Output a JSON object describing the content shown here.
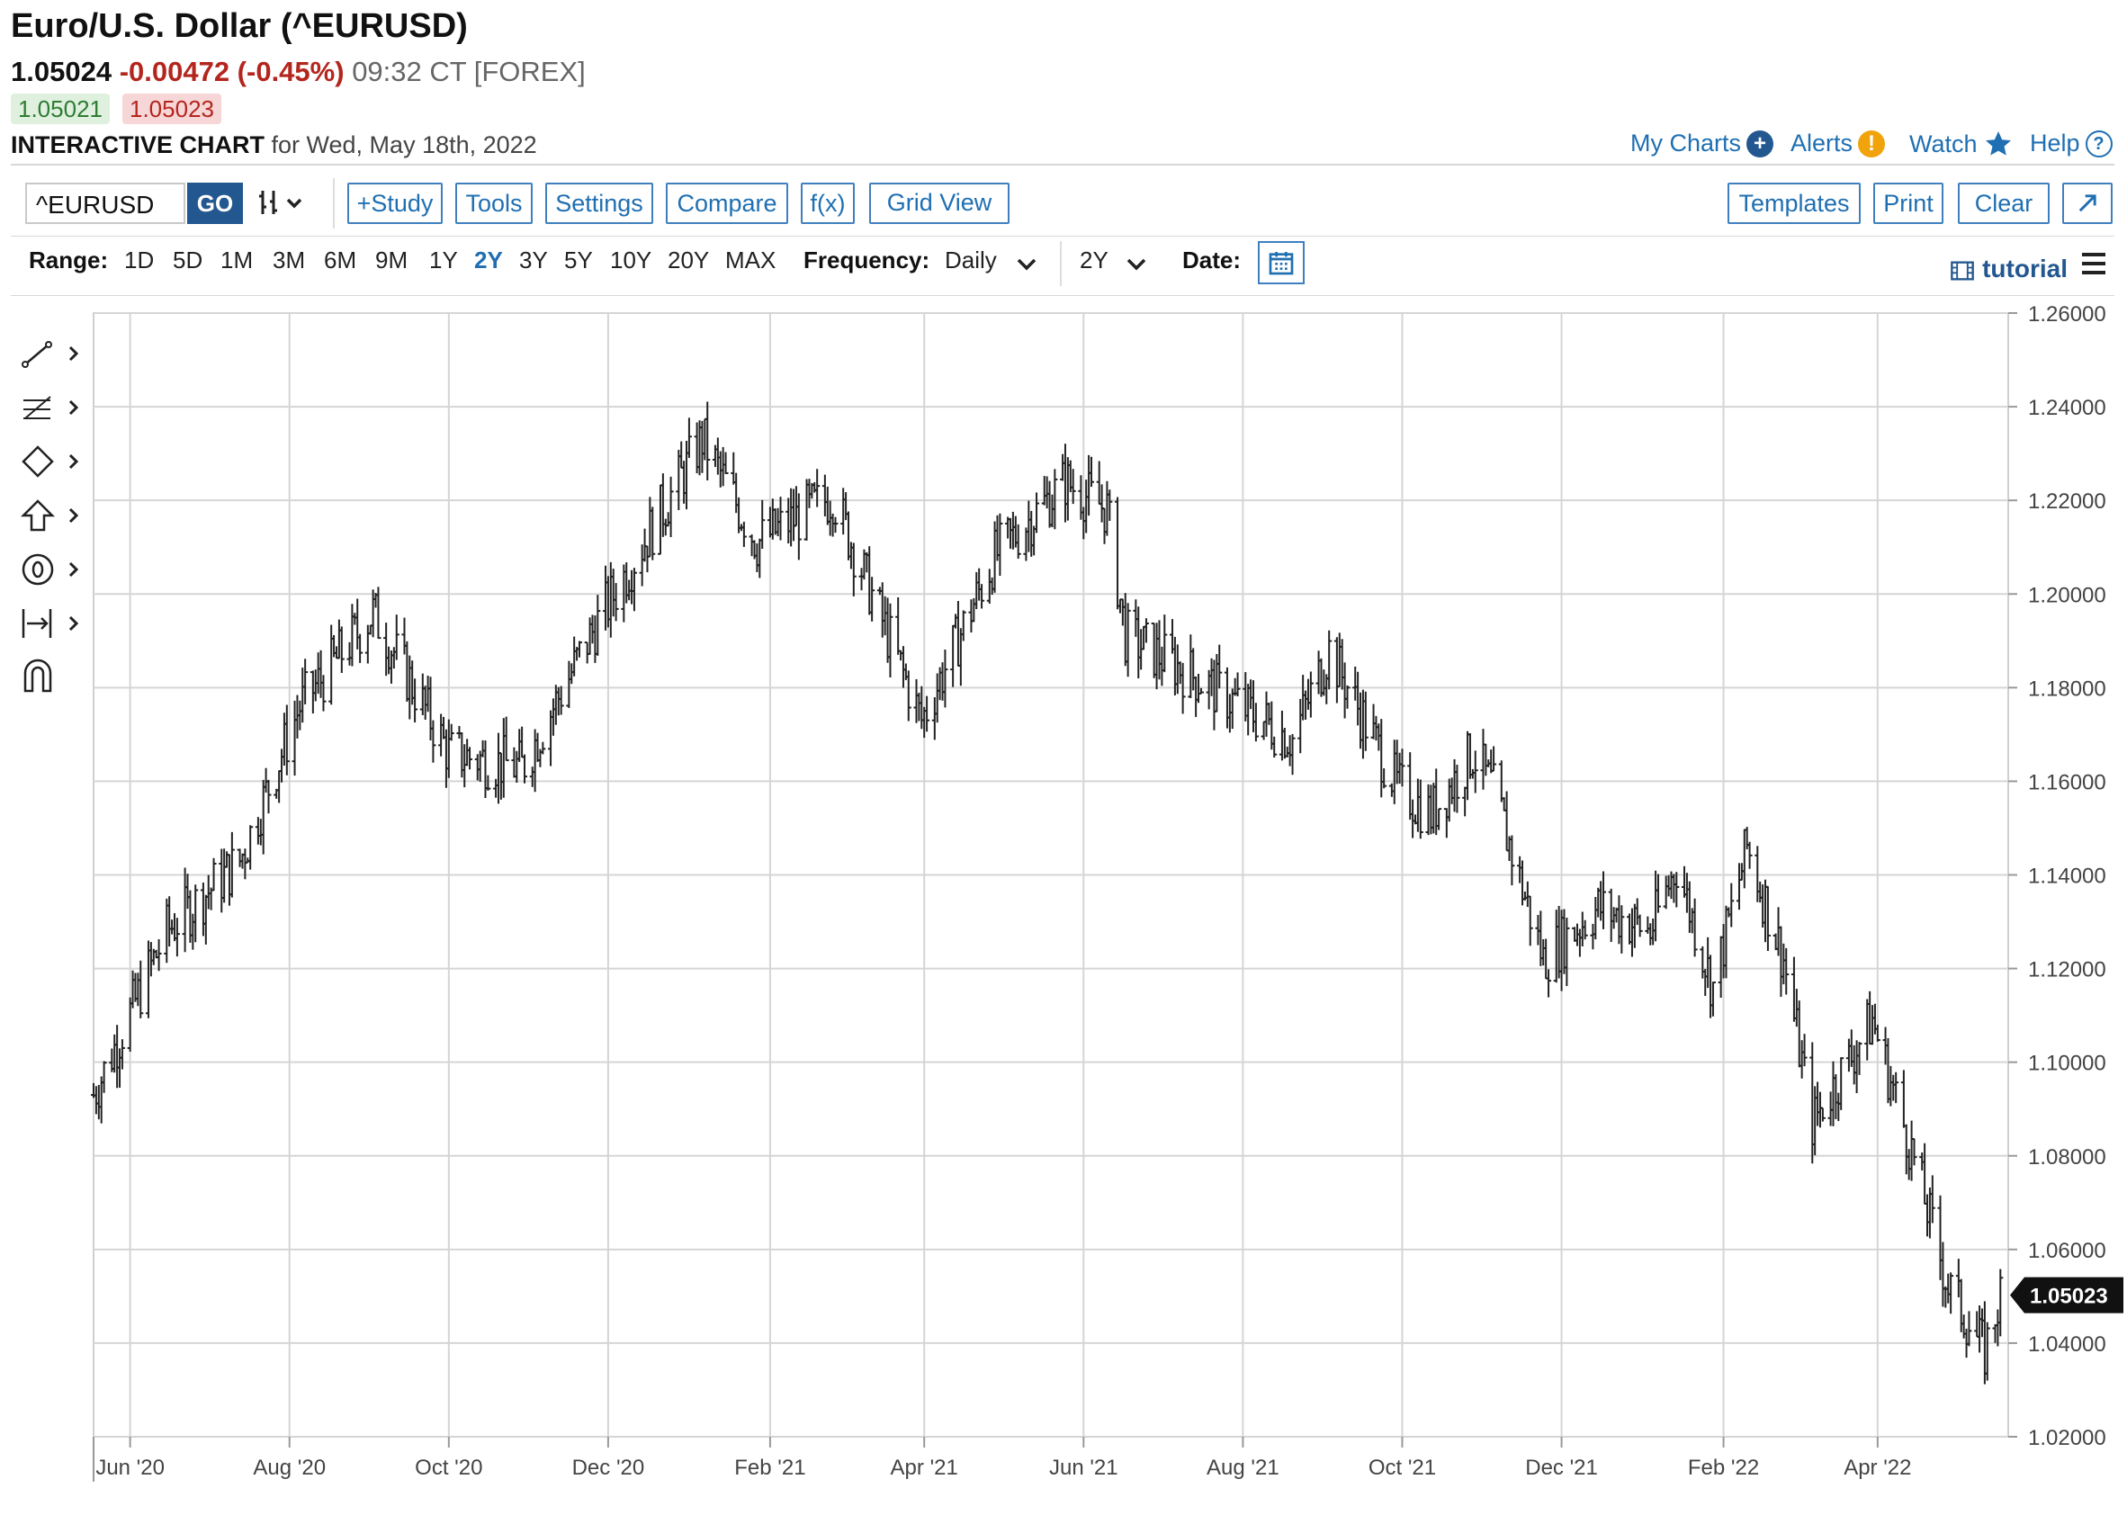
{
  "header": {
    "title": "Euro/U.S. Dollar (^EURUSD)",
    "last": "1.05024",
    "change": "-0.00472 (-0.45%)",
    "time": "09:32 CT [FOREX]",
    "bid": "1.05021",
    "ask": "1.05023",
    "chart_title": "INTERACTIVE CHART",
    "chart_date": "for Wed, May 18th, 2022"
  },
  "top_links": {
    "my_charts": "My Charts",
    "alerts": "Alerts",
    "watch": "Watch",
    "help": "Help"
  },
  "toolbar": {
    "symbol_value": "^EURUSD",
    "go": "GO",
    "study": "+Study",
    "tools": "Tools",
    "settings": "Settings",
    "compare": "Compare",
    "fx": "f(x)",
    "grid_view": "Grid View",
    "templates": "Templates",
    "print": "Print",
    "clear": "Clear"
  },
  "range_row": {
    "range_label": "Range:",
    "ranges": [
      "1D",
      "5D",
      "1M",
      "3M",
      "6M",
      "9M",
      "1Y",
      "2Y",
      "3Y",
      "5Y",
      "10Y",
      "20Y",
      "MAX"
    ],
    "active_range": "2Y",
    "frequency_label": "Frequency:",
    "frequency": "Daily",
    "period": "2Y",
    "date_label": "Date:",
    "tutorial": "tutorial"
  },
  "colors": {
    "accent": "#1f6fb2",
    "down": "#b3261e",
    "up": "#2e7d32",
    "bars": "#222222"
  },
  "chart_data": {
    "type": "ohlc-bar",
    "series": [
      {
        "name": "^EURUSD"
      }
    ],
    "x": [
      "2020-05-18",
      "2020-06-15",
      "2020-07-13",
      "2020-08-05",
      "2020-09-02",
      "2020-10-01",
      "2020-10-29",
      "2020-11-26",
      "2020-12-29",
      "2021-01-06",
      "2021-01-27",
      "2021-02-25",
      "2021-03-31",
      "2021-04-28",
      "2021-05-25",
      "2021-06-10",
      "2021-06-17",
      "2021-07-06",
      "2021-08-20",
      "2021-09-03",
      "2021-09-29",
      "2021-10-12",
      "2021-10-28",
      "2021-11-05",
      "2021-11-24",
      "2021-12-15",
      "2022-01-04",
      "2022-01-14",
      "2022-01-28",
      "2022-02-10",
      "2022-02-24",
      "2022-03-07",
      "2022-03-30",
      "2022-04-14",
      "2022-04-28",
      "2022-05-12",
      "2022-05-18"
    ],
    "close": [
      1.093,
      1.128,
      1.143,
      1.176,
      1.196,
      1.166,
      1.163,
      1.193,
      1.225,
      1.233,
      1.211,
      1.221,
      1.173,
      1.208,
      1.224,
      1.218,
      1.191,
      1.185,
      1.169,
      1.188,
      1.159,
      1.153,
      1.166,
      1.158,
      1.122,
      1.133,
      1.128,
      1.142,
      1.116,
      1.146,
      1.122,
      1.087,
      1.109,
      1.081,
      1.052,
      1.038,
      1.05
    ],
    "last": 1.05023,
    "x_ticks": [
      "Jun '20",
      "Aug '20",
      "Oct '20",
      "Dec '20",
      "Feb '21",
      "Apr '21",
      "Jun '21",
      "Aug '21",
      "Oct '21",
      "Dec '21",
      "Feb '22",
      "Apr '22"
    ],
    "y_ticks": [
      "1.26000",
      "1.24000",
      "1.22000",
      "1.20000",
      "1.18000",
      "1.16000",
      "1.14000",
      "1.12000",
      "1.10000",
      "1.08000",
      "1.06000",
      "1.04000",
      "1.02000"
    ],
    "ylim": [
      1.02,
      1.26
    ],
    "xlim": [
      "2020-05-18",
      "2022-05-21"
    ],
    "grid": true
  }
}
